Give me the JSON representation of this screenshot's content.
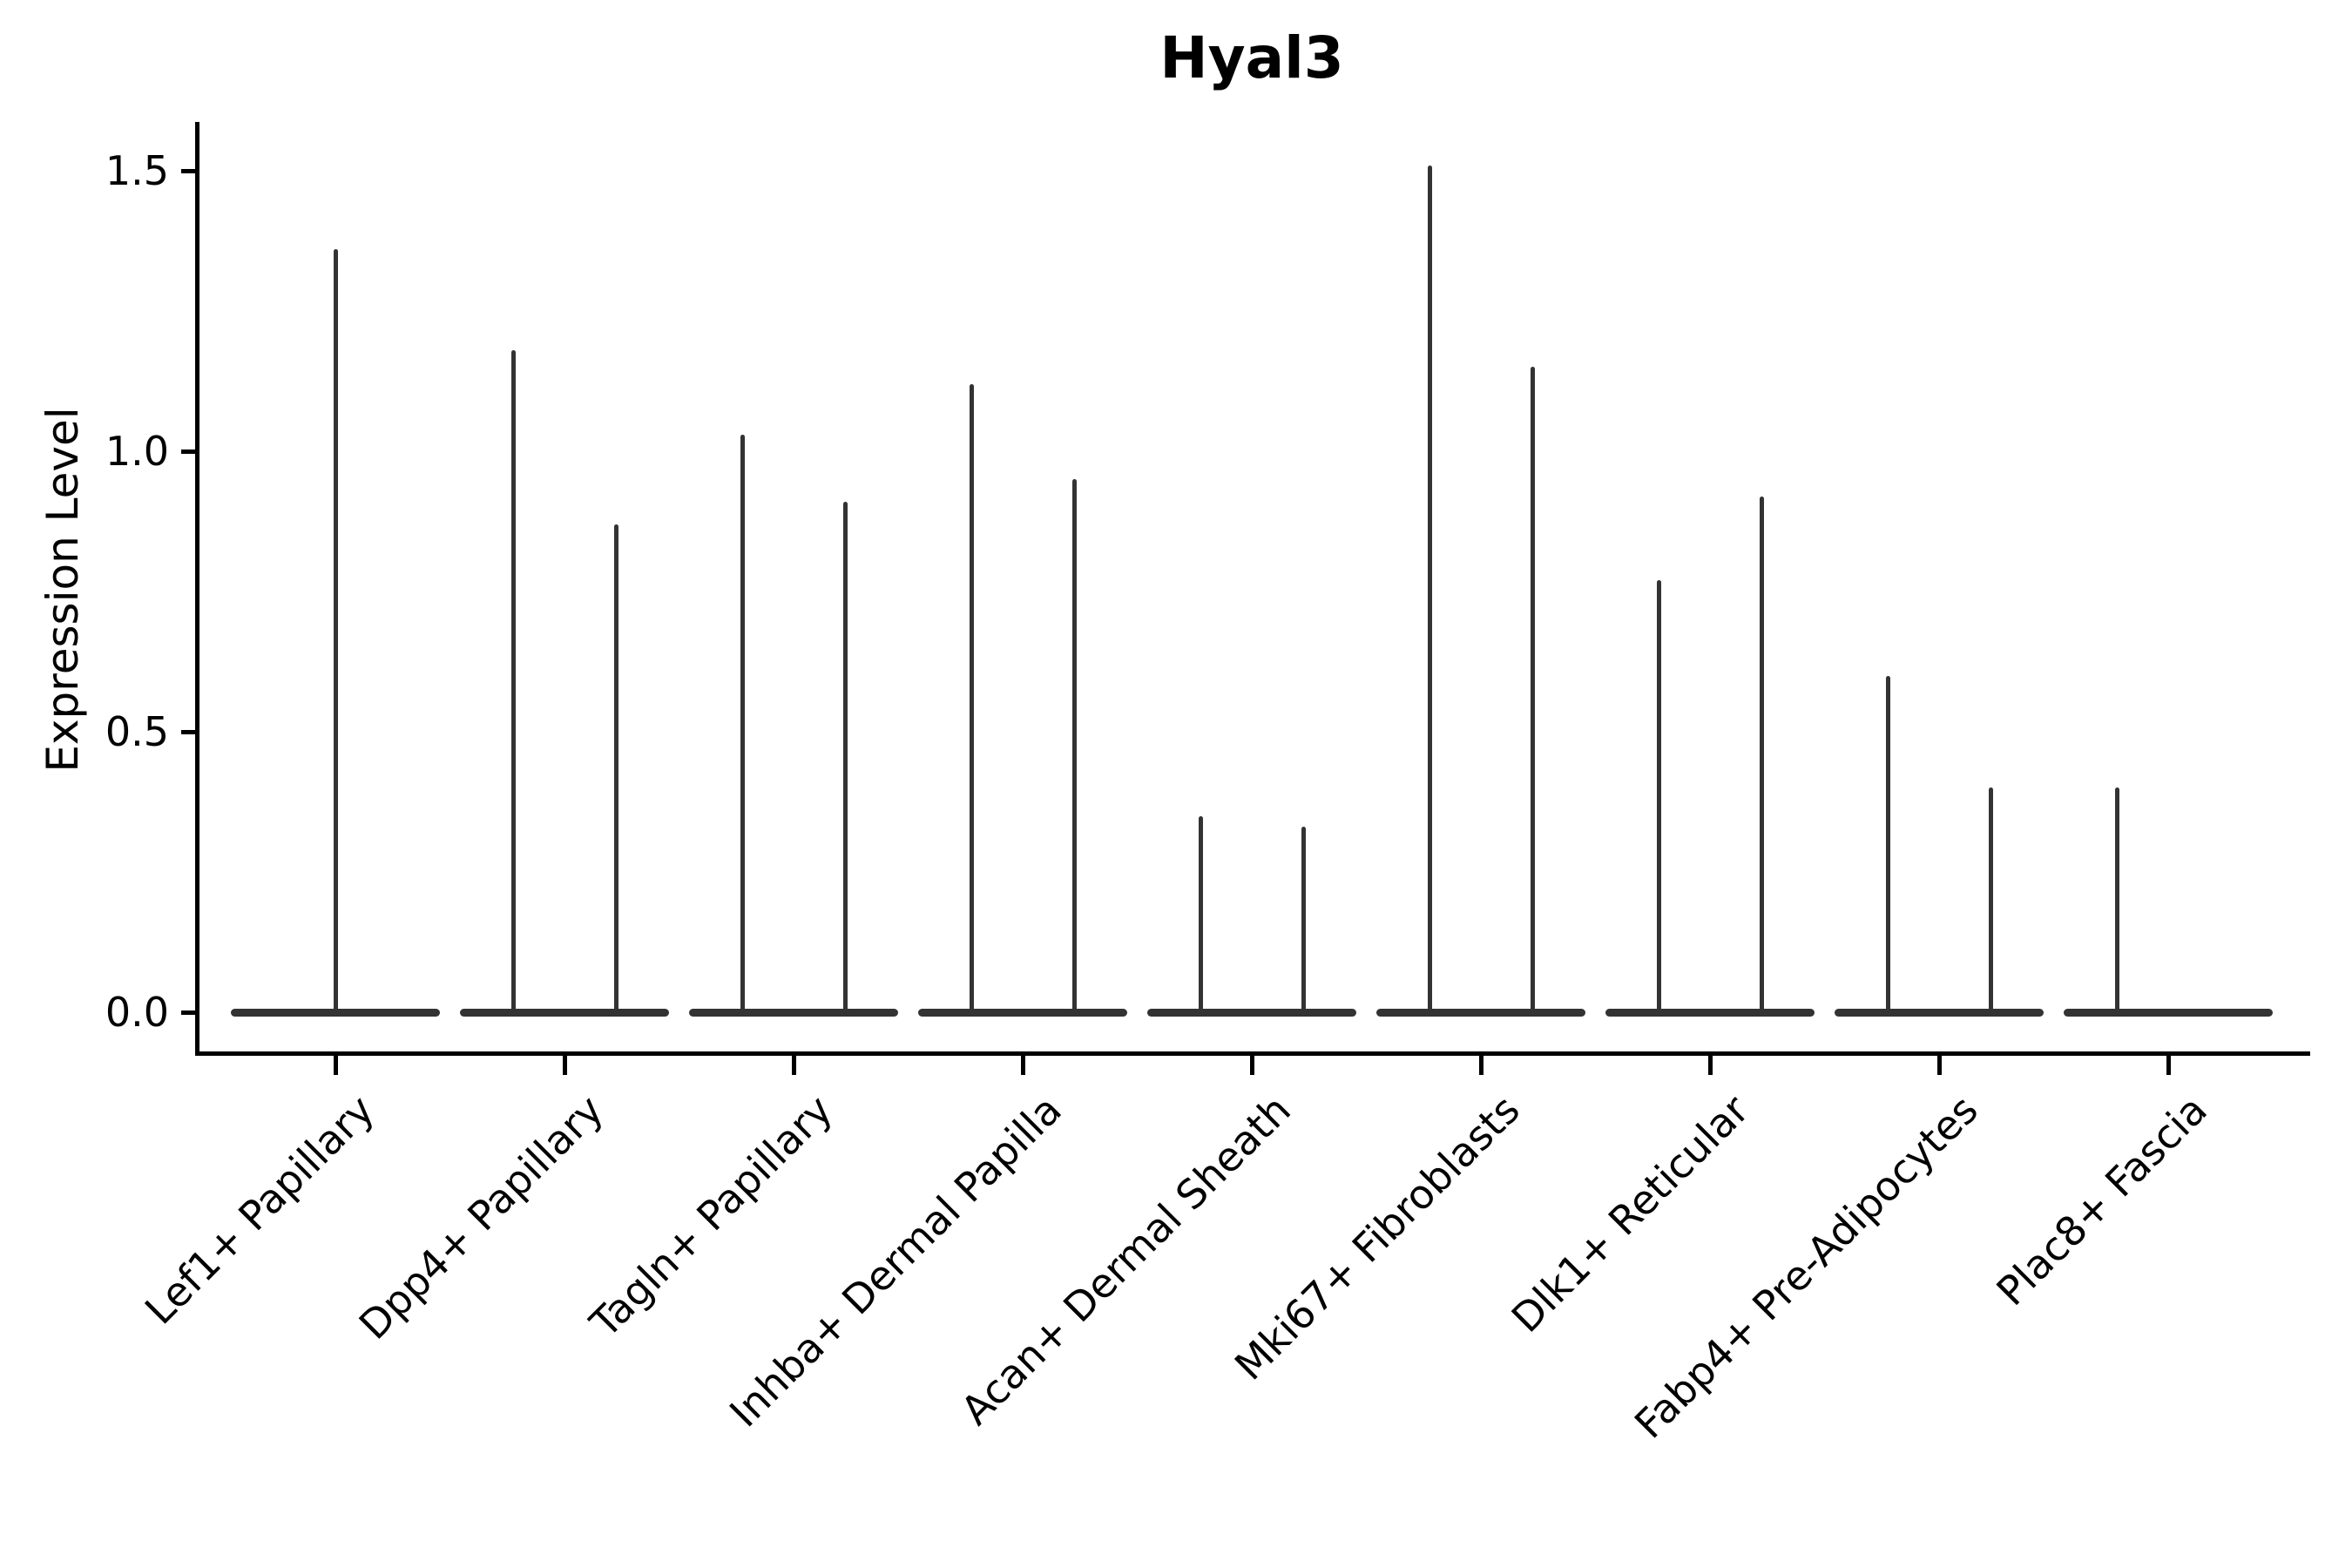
{
  "title": "Hyal3",
  "colors": {
    "violin": "#333333",
    "axis": "#000000",
    "background": "#ffffff"
  },
  "chart_data": {
    "type": "violin",
    "title": "Hyal3",
    "xlabel": "",
    "ylabel": "Expression Level",
    "ylim": [
      -0.07,
      1.57
    ],
    "yticks": [
      "0.0",
      "0.5",
      "1.0",
      "1.5"
    ],
    "ytick_values": [
      0.0,
      0.5,
      1.0,
      1.5
    ],
    "grid": false,
    "legend": "none",
    "categories": [
      "Lef1+ Papillary",
      "Dpp4+ Papillary",
      "Tagln+ Papillary",
      "Inhba+ Dermal Papilla",
      "Acan+ Dermal Sheath",
      "Mki67+ Fibroblasts",
      "Dlk1+ Reticular",
      "Fabp4+ Pre-Adipocytes",
      "Plac8+ Fascia"
    ],
    "violins": [
      {
        "category": "Lef1+ Papillary",
        "baseline_value": 0.0,
        "spikes": [
          {
            "side": "center",
            "max": 1.36
          }
        ]
      },
      {
        "category": "Dpp4+ Papillary",
        "baseline_value": 0.0,
        "spikes": [
          {
            "side": "left",
            "max": 1.18
          },
          {
            "side": "right",
            "max": 0.87
          }
        ]
      },
      {
        "category": "Tagln+ Papillary",
        "baseline_value": 0.0,
        "spikes": [
          {
            "side": "left",
            "max": 1.03
          },
          {
            "side": "right",
            "max": 0.91
          }
        ]
      },
      {
        "category": "Inhba+ Dermal Papilla",
        "baseline_value": 0.0,
        "spikes": [
          {
            "side": "left",
            "max": 1.12
          },
          {
            "side": "right",
            "max": 0.95
          }
        ]
      },
      {
        "category": "Acan+ Dermal Sheath",
        "baseline_value": 0.0,
        "spikes": [
          {
            "side": "left",
            "max": 0.35
          },
          {
            "side": "right",
            "max": 0.33
          }
        ]
      },
      {
        "category": "Mki67+ Fibroblasts",
        "baseline_value": 0.0,
        "spikes": [
          {
            "side": "left",
            "max": 1.51
          },
          {
            "side": "right",
            "max": 1.15
          }
        ]
      },
      {
        "category": "Dlk1+ Reticular",
        "baseline_value": 0.0,
        "spikes": [
          {
            "side": "left",
            "max": 0.77
          },
          {
            "side": "right",
            "max": 0.92
          }
        ]
      },
      {
        "category": "Fabp4+ Pre-Adipocytes",
        "baseline_value": 0.0,
        "spikes": [
          {
            "side": "left",
            "max": 0.6
          },
          {
            "side": "right",
            "max": 0.4
          }
        ]
      },
      {
        "category": "Plac8+ Fascia",
        "baseline_value": 0.0,
        "spikes": [
          {
            "side": "left",
            "max": 0.4
          }
        ]
      }
    ]
  }
}
